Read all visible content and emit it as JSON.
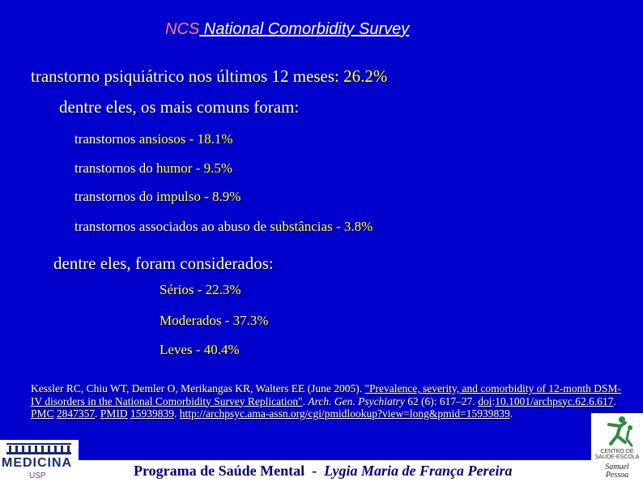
{
  "title": {
    "acronym": "NCS",
    "full": " National Comorbidity Survey"
  },
  "prevalence": {
    "label": "transtorno psiquiátrico nos últimos 12 meses: ",
    "value": "26.2%"
  },
  "common_heading": "dentre eles, os mais comuns foram:",
  "common_items": [
    {
      "pre": "transtornos ",
      "key": "ansiosos",
      "post": " - 18.1%"
    },
    {
      "pre": "transtornos do ",
      "key": "humor",
      "post": " - 9.5%"
    },
    {
      "pre": "transtornos do ",
      "key": "impulso",
      "post": " - 8.9%"
    },
    {
      "pre": "transtornos associados ao abuso de ",
      "key": "substâncias",
      "post": " - 3.8%"
    }
  ],
  "severity_heading": "dentre eles, foram considerados:",
  "severity_items": [
    {
      "text": "Sérios - 22.3%"
    },
    {
      "text": "Moderados - 37.3%"
    },
    {
      "text": "Leves - 40.4%"
    }
  ],
  "reference": {
    "authors": "Kessler RC, Chiu WT, Demler O, Merikangas KR, Walters EE (June 2005). ",
    "article_title": "\"Prevalence, severity, and comorbidity of 12-month DSM-IV disorders in the National Comorbidity Survey Replication\"",
    "journal": "Arch. Gen. Psychiatry",
    "volume": " 62 (6): 617–27. ",
    "doi_label": "doi",
    "doi": "10.1001/archpsyc.62.6.617",
    "pmc_label": "PMC",
    "pmc": "2847357",
    "pmid_label": "PMID",
    "pmid": "15939839",
    "url": "http://archpsyc.ama-assn.org/cgi/pmidlookup?view=long&pmid=15939839"
  },
  "footer": {
    "program": "Programa de Saúde Mental",
    "separator": "  -  ",
    "author": "Lygia Maria de França Pereira"
  },
  "logos": {
    "medicina": {
      "word": "MEDICINA",
      "sub": "USP"
    },
    "centro": {
      "name": "CENTRO DE SAÚDE-ESCOLA",
      "person": "Samuel Pessoa"
    }
  }
}
